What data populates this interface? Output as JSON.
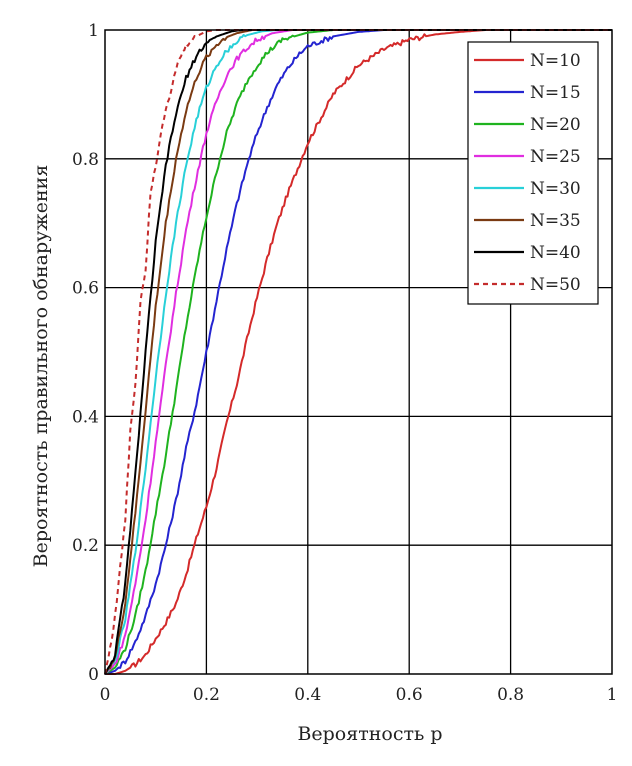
{
  "chart_data": {
    "type": "line",
    "title": "",
    "xlabel": "Вероятность p",
    "ylabel": "Вероятность правильного обнаружения",
    "xlim": [
      0,
      1
    ],
    "ylim": [
      0,
      1
    ],
    "xticks": [
      "0",
      "0.2",
      "0.4",
      "0.6",
      "0.8",
      "1"
    ],
    "yticks": [
      "0",
      "0.2",
      "0.4",
      "0.6",
      "0.8",
      "1"
    ],
    "grid": true,
    "legend_position": "top-right",
    "series": [
      {
        "name": "N=10",
        "color": "#d42a2a",
        "dash": false,
        "points": [
          [
            0,
            0
          ],
          [
            0.02,
            0
          ],
          [
            0.04,
            0.005
          ],
          [
            0.06,
            0.015
          ],
          [
            0.08,
            0.03
          ],
          [
            0.1,
            0.055
          ],
          [
            0.12,
            0.08
          ],
          [
            0.14,
            0.11
          ],
          [
            0.16,
            0.155
          ],
          [
            0.18,
            0.21
          ],
          [
            0.2,
            0.26
          ],
          [
            0.22,
            0.32
          ],
          [
            0.24,
            0.39
          ],
          [
            0.26,
            0.45
          ],
          [
            0.28,
            0.52
          ],
          [
            0.3,
            0.585
          ],
          [
            0.32,
            0.645
          ],
          [
            0.34,
            0.7
          ],
          [
            0.36,
            0.745
          ],
          [
            0.38,
            0.785
          ],
          [
            0.4,
            0.825
          ],
          [
            0.45,
            0.9
          ],
          [
            0.5,
            0.945
          ],
          [
            0.55,
            0.97
          ],
          [
            0.6,
            0.985
          ],
          [
            0.65,
            0.993
          ],
          [
            0.7,
            0.997
          ],
          [
            0.75,
            1
          ],
          [
            1,
            1
          ]
        ]
      },
      {
        "name": "N=15",
        "color": "#2424d0",
        "dash": false,
        "points": [
          [
            0,
            0
          ],
          [
            0.02,
            0.005
          ],
          [
            0.04,
            0.02
          ],
          [
            0.06,
            0.05
          ],
          [
            0.08,
            0.09
          ],
          [
            0.1,
            0.14
          ],
          [
            0.12,
            0.2
          ],
          [
            0.14,
            0.27
          ],
          [
            0.16,
            0.35
          ],
          [
            0.18,
            0.42
          ],
          [
            0.2,
            0.5
          ],
          [
            0.22,
            0.58
          ],
          [
            0.24,
            0.66
          ],
          [
            0.26,
            0.73
          ],
          [
            0.28,
            0.79
          ],
          [
            0.3,
            0.84
          ],
          [
            0.32,
            0.88
          ],
          [
            0.34,
            0.915
          ],
          [
            0.36,
            0.94
          ],
          [
            0.38,
            0.96
          ],
          [
            0.4,
            0.975
          ],
          [
            0.45,
            0.99
          ],
          [
            0.5,
            0.997
          ],
          [
            0.55,
            1
          ],
          [
            1,
            1
          ]
        ]
      },
      {
        "name": "N=20",
        "color": "#1fb31f",
        "dash": false,
        "points": [
          [
            0,
            0
          ],
          [
            0.02,
            0.01
          ],
          [
            0.04,
            0.04
          ],
          [
            0.06,
            0.09
          ],
          [
            0.08,
            0.16
          ],
          [
            0.1,
            0.25
          ],
          [
            0.12,
            0.34
          ],
          [
            0.14,
            0.44
          ],
          [
            0.16,
            0.54
          ],
          [
            0.18,
            0.63
          ],
          [
            0.2,
            0.71
          ],
          [
            0.22,
            0.78
          ],
          [
            0.24,
            0.84
          ],
          [
            0.26,
            0.885
          ],
          [
            0.28,
            0.92
          ],
          [
            0.3,
            0.945
          ],
          [
            0.32,
            0.965
          ],
          [
            0.35,
            0.985
          ],
          [
            0.4,
            0.996
          ],
          [
            0.45,
            1
          ],
          [
            1,
            1
          ]
        ]
      },
      {
        "name": "N=25",
        "color": "#e02ee0",
        "dash": false,
        "points": [
          [
            0,
            0
          ],
          [
            0.02,
            0.015
          ],
          [
            0.04,
            0.06
          ],
          [
            0.06,
            0.14
          ],
          [
            0.08,
            0.24
          ],
          [
            0.1,
            0.36
          ],
          [
            0.12,
            0.48
          ],
          [
            0.14,
            0.59
          ],
          [
            0.16,
            0.69
          ],
          [
            0.18,
            0.77
          ],
          [
            0.2,
            0.84
          ],
          [
            0.22,
            0.89
          ],
          [
            0.24,
            0.93
          ],
          [
            0.26,
            0.955
          ],
          [
            0.28,
            0.972
          ],
          [
            0.3,
            0.985
          ],
          [
            0.33,
            0.995
          ],
          [
            0.37,
            1
          ],
          [
            1,
            1
          ]
        ]
      },
      {
        "name": "N=30",
        "color": "#28d0d8",
        "dash": false,
        "points": [
          [
            0,
            0
          ],
          [
            0.02,
            0.02
          ],
          [
            0.04,
            0.085
          ],
          [
            0.06,
            0.19
          ],
          [
            0.08,
            0.32
          ],
          [
            0.1,
            0.46
          ],
          [
            0.12,
            0.59
          ],
          [
            0.14,
            0.7
          ],
          [
            0.16,
            0.79
          ],
          [
            0.18,
            0.86
          ],
          [
            0.2,
            0.91
          ],
          [
            0.22,
            0.945
          ],
          [
            0.24,
            0.968
          ],
          [
            0.26,
            0.982
          ],
          [
            0.28,
            0.992
          ],
          [
            0.31,
            0.998
          ],
          [
            0.34,
            1
          ],
          [
            1,
            1
          ]
        ]
      },
      {
        "name": "N=35",
        "color": "#7a3a12",
        "dash": false,
        "points": [
          [
            0,
            0
          ],
          [
            0.02,
            0.025
          ],
          [
            0.04,
            0.11
          ],
          [
            0.06,
            0.25
          ],
          [
            0.08,
            0.41
          ],
          [
            0.1,
            0.57
          ],
          [
            0.12,
            0.7
          ],
          [
            0.14,
            0.8
          ],
          [
            0.16,
            0.875
          ],
          [
            0.18,
            0.925
          ],
          [
            0.2,
            0.958
          ],
          [
            0.22,
            0.977
          ],
          [
            0.24,
            0.989
          ],
          [
            0.26,
            0.995
          ],
          [
            0.29,
            1
          ],
          [
            1,
            1
          ]
        ]
      },
      {
        "name": "N=40",
        "color": "#000000",
        "dash": false,
        "points": [
          [
            0,
            0
          ],
          [
            0.02,
            0.03
          ],
          [
            0.04,
            0.14
          ],
          [
            0.06,
            0.31
          ],
          [
            0.08,
            0.5
          ],
          [
            0.1,
            0.67
          ],
          [
            0.12,
            0.79
          ],
          [
            0.14,
            0.87
          ],
          [
            0.16,
            0.925
          ],
          [
            0.18,
            0.96
          ],
          [
            0.2,
            0.98
          ],
          [
            0.22,
            0.99
          ],
          [
            0.25,
            0.998
          ],
          [
            0.27,
            1
          ],
          [
            1,
            1
          ]
        ]
      },
      {
        "name": "N=50",
        "color": "#c42c2c",
        "dash": true,
        "points": [
          [
            0,
            0
          ],
          [
            0.01,
            0.04
          ],
          [
            0.02,
            0.09
          ],
          [
            0.04,
            0.24
          ],
          [
            0.05,
            0.38
          ],
          [
            0.06,
            0.45
          ],
          [
            0.07,
            0.58
          ],
          [
            0.08,
            0.63
          ],
          [
            0.09,
            0.75
          ],
          [
            0.1,
            0.79
          ],
          [
            0.11,
            0.84
          ],
          [
            0.12,
            0.88
          ],
          [
            0.13,
            0.9
          ],
          [
            0.14,
            0.94
          ],
          [
            0.15,
            0.96
          ],
          [
            0.16,
            0.975
          ],
          [
            0.17,
            0.985
          ],
          [
            0.18,
            0.99
          ],
          [
            0.2,
            0.998
          ],
          [
            0.22,
            1
          ],
          [
            1,
            1
          ]
        ]
      }
    ]
  }
}
